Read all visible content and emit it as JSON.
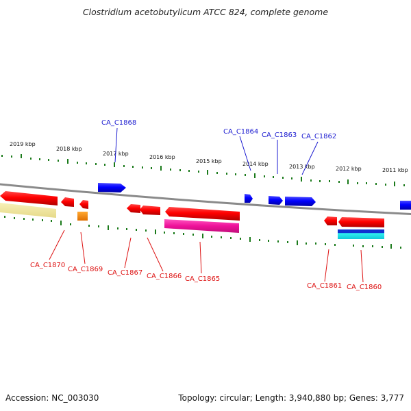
{
  "header": {
    "title": "Clostridium acetobutylicum ATCC 824, complete genome"
  },
  "footer": {
    "accession": "Accession: NC_003030",
    "summary": "Topology: circular; Length: 3,940,880 bp; Genes: 3,777"
  },
  "colors": {
    "backbone": "#7f7f7f",
    "tick": "#1a7a1a",
    "forward_gene": "#1010ee",
    "reverse_gene": "#ee1111",
    "rna_magenta": "#e8168e",
    "khaki": "#efe6a0",
    "orange": "#f08a00",
    "cyan": "#20e8e8",
    "label_blue": "#1a1ad0",
    "label_red": "#dd1111"
  },
  "ticks": [
    {
      "label": "2019 kbp"
    },
    {
      "label": "2018 kbp"
    },
    {
      "label": "2017 kbp"
    },
    {
      "label": "2016 kbp"
    },
    {
      "label": "2015 kbp"
    },
    {
      "label": "2014 kbp"
    },
    {
      "label": "2013 kbp"
    },
    {
      "label": "2012 kbp"
    },
    {
      "label": "2011 kbp"
    }
  ],
  "labels_top": [
    "CA_C1868",
    "CA_C1864",
    "CA_C1863",
    "CA_C1862"
  ],
  "labels_bottom": [
    "CA_C1870",
    "CA_C1869",
    "CA_C1867",
    "CA_C1866",
    "CA_C1865",
    "CA_C1861",
    "CA_C1860"
  ]
}
